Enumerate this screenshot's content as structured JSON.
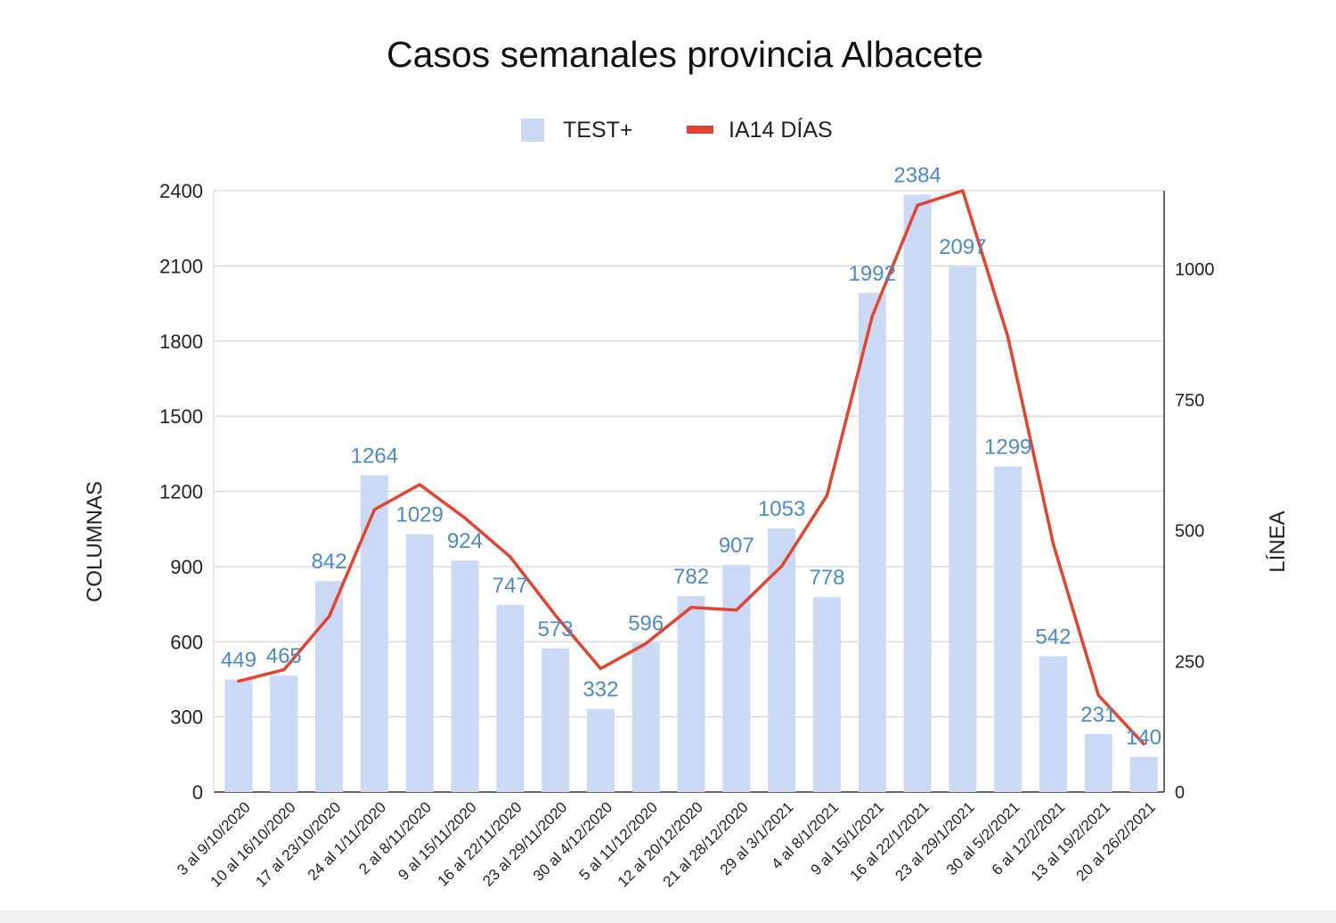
{
  "chart_data": {
    "type": "bar+line",
    "title": "Casos semanales provincia Albacete",
    "ylabel_left": "COLUMNAS",
    "ylabel_right": "LÍNEA",
    "ylim_left": [
      0,
      2400
    ],
    "yticks_left": [
      0,
      300,
      600,
      900,
      1200,
      1500,
      1800,
      2100,
      2400
    ],
    "ylim_right": [
      0,
      1150
    ],
    "yticks_right": [
      0,
      250,
      500,
      750,
      1000
    ],
    "grid": true,
    "legend_position": "top-center",
    "categories": [
      "3 al 9/10/2020",
      "10 al 16/10/2020",
      "17 al 23/10/2020",
      "24 al 1/11/2020",
      "2 al 8/11/2020",
      "9 al 15/11/2020",
      "16 al 22/11/2020",
      "23 al 29/11/2020",
      "30 al 4/12/2020",
      "5 al 11/12/2020",
      "12 al 20/12/2020",
      "21 al 28/12/2020",
      "29 al 3/1/2021",
      "4 al 8/1/2021",
      "9 al 15/1/2021",
      "16 al 22/1/2021",
      "23 al 29/1/2021",
      "30 al 5/2/2021",
      "6 al 12/2/2021",
      "13 al 19/2/2021",
      "20 al 26/2/2021"
    ],
    "series": [
      {
        "name": "TEST+",
        "type": "bar",
        "axis": "left",
        "color": "#c9d9f6",
        "values": [
          449,
          465,
          842,
          1264,
          1029,
          924,
          747,
          573,
          332,
          596,
          782,
          907,
          1053,
          778,
          1992,
          2384,
          2097,
          1299,
          542,
          231,
          140
        ]
      },
      {
        "name": "IA14 DÍAS",
        "type": "line",
        "axis": "right",
        "color": "#e4442f",
        "values": [
          212,
          234,
          336,
          540,
          588,
          524,
          450,
          338,
          236,
          284,
          353,
          348,
          432,
          567,
          910,
          1122,
          1150,
          870,
          475,
          185,
          92
        ]
      }
    ]
  }
}
